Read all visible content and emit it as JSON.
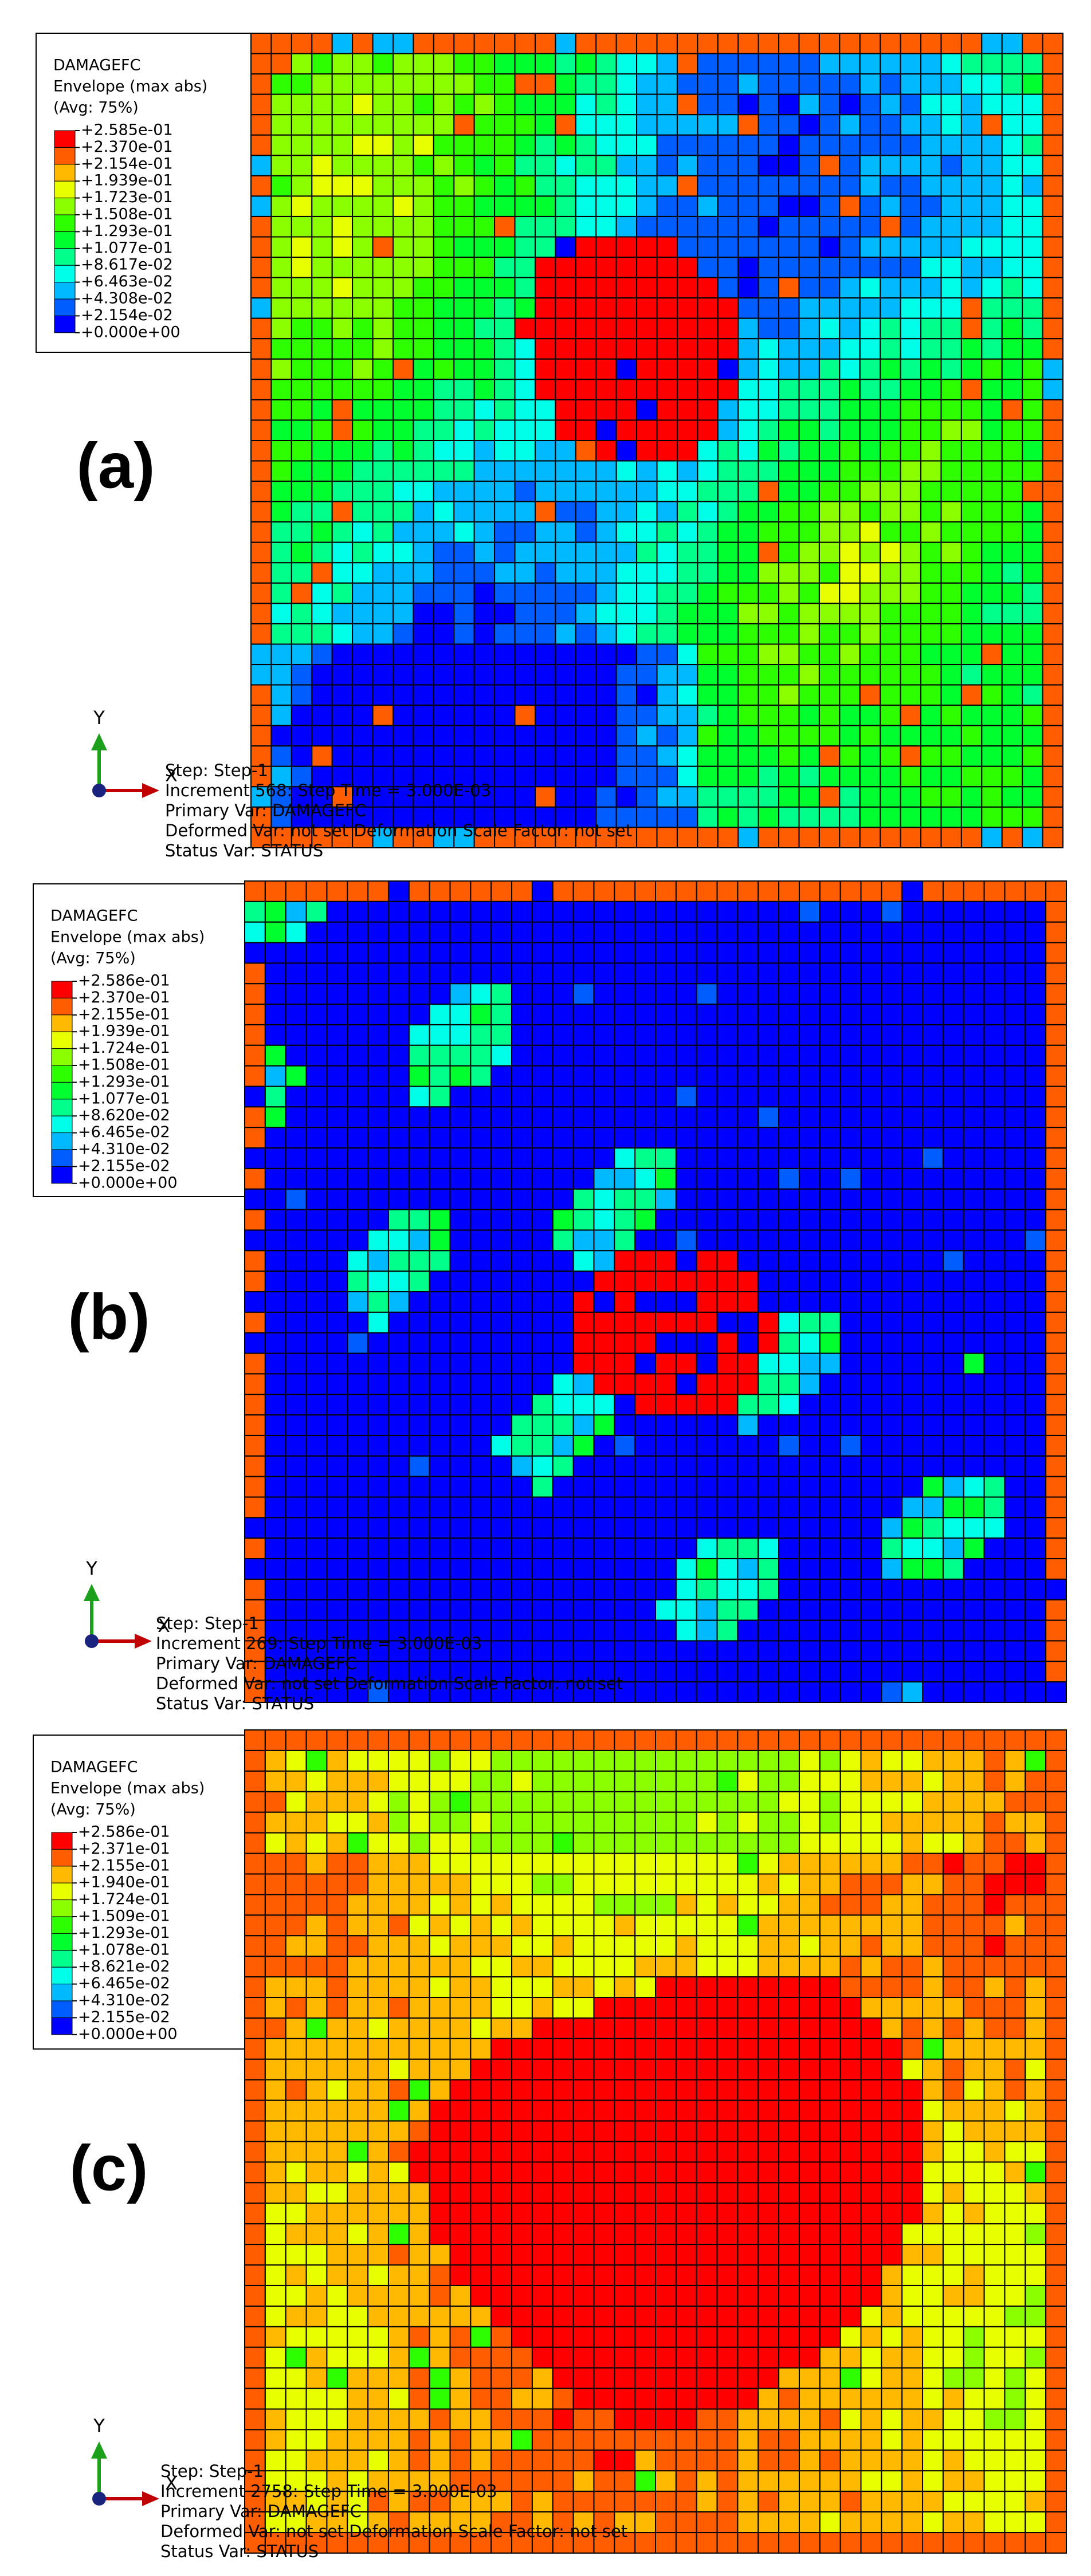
{
  "panels": [
    {
      "label": "(a)",
      "legend": {
        "title": "DAMAGEFC",
        "subtitle": "Envelope (max abs)",
        "avg": "(Avg: 75%)",
        "levels": [
          "+2.585e-01",
          "+2.370e-01",
          "+2.154e-01",
          "+1.939e-01",
          "+1.723e-01",
          "+1.508e-01",
          "+1.293e-01",
          "+1.077e-01",
          "+8.617e-02",
          "+6.463e-02",
          "+4.308e-02",
          "+2.154e-02",
          "+0.000e+00"
        ]
      },
      "axes": {
        "y": "Y",
        "x": "X"
      },
      "info": [
        "Step: Step-1",
        "Increment 568: Step Time = 3.000E-03",
        "Primary Var: DAMAGEFC",
        "Deformed Var: not set Deformation Scale Factor: not set",
        "Status Var: STATUS"
      ]
    },
    {
      "label": "(b)",
      "legend": {
        "title": "DAMAGEFC",
        "subtitle": "Envelope (max abs)",
        "avg": "(Avg: 75%)",
        "levels": [
          "+2.586e-01",
          "+2.370e-01",
          "+2.155e-01",
          "+1.939e-01",
          "+1.724e-01",
          "+1.508e-01",
          "+1.293e-01",
          "+1.077e-01",
          "+8.620e-02",
          "+6.465e-02",
          "+4.310e-02",
          "+2.155e-02",
          "+0.000e+00"
        ]
      },
      "axes": {
        "y": "Y",
        "x": "X"
      },
      "info": [
        "Step: Step-1",
        "Increment 269: Step Time = 3.000E-03",
        "Primary Var: DAMAGEFC",
        "Deformed Var: not set Deformation Scale Factor: not set",
        "Status Var: STATUS"
      ]
    },
    {
      "label": "(c)",
      "legend": {
        "title": "DAMAGEFC",
        "subtitle": "Envelope (max abs)",
        "avg": "(Avg: 75%)",
        "levels": [
          "+2.586e-01",
          "+2.371e-01",
          "+2.155e-01",
          "+1.940e-01",
          "+1.724e-01",
          "+1.509e-01",
          "+1.293e-01",
          "+1.078e-01",
          "+8.621e-02",
          "+6.465e-02",
          "+4.310e-02",
          "+2.155e-02",
          "+0.000e+00"
        ]
      },
      "axes": {
        "y": "Y",
        "x": "X"
      },
      "info": [
        "Step: Step-1",
        "Increment 2758: Step Time = 3.000E-03",
        "Primary Var: DAMAGEFC",
        "Deformed Var: not set Deformation Scale Factor: not set",
        "Status Var: STATUS"
      ]
    }
  ]
}
